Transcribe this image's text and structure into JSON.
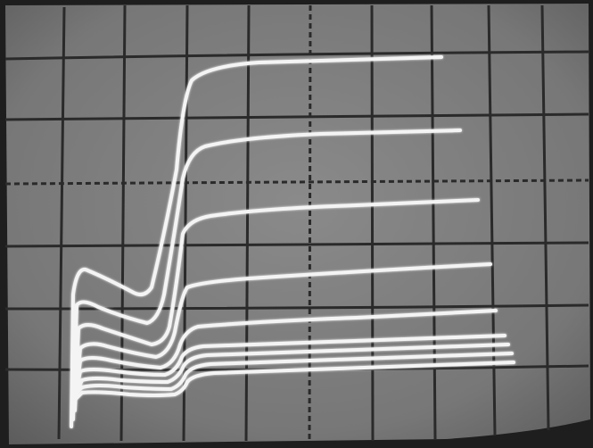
{
  "scene": {
    "subject": "oscilloscope-screen-curve-family",
    "screen_color": "#7d7d7d",
    "bezel_color": "#1e1e1e",
    "grid_color": "#2a2a2a",
    "trace_color": "#f4f4f4",
    "graticule": {
      "major_columns": 10,
      "major_rows": 7,
      "has_center_cross_ticks": true
    },
    "trace_count": 8
  }
}
